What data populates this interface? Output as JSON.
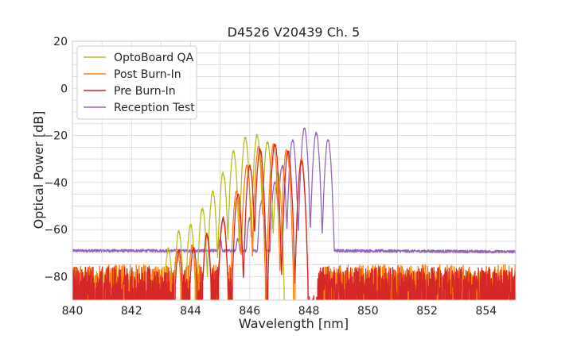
{
  "chart_data": {
    "type": "line",
    "title": "D4526 V20439 Ch. 5",
    "xlabel": "Wavelength [nm]",
    "ylabel": "Optical Power [dB]",
    "xlim": [
      840,
      855
    ],
    "ylim": [
      -90,
      20
    ],
    "xticks": [
      840,
      842,
      844,
      846,
      848,
      850,
      852,
      854
    ],
    "yticks": [
      20,
      0,
      -20,
      -40,
      -60,
      -80
    ],
    "xtick_labels": [
      "840",
      "842",
      "844",
      "846",
      "848",
      "850",
      "852",
      "854"
    ],
    "ytick_labels": [
      "20",
      "0",
      "−20",
      "−40",
      "−60",
      "−80"
    ],
    "grid": true,
    "legend_position": "upper-left",
    "series": [
      {
        "name": "OptoBoard QA",
        "color": "#bcbd22",
        "noise_floor": -85,
        "peaks": [
          {
            "x": 843.25,
            "y": -68
          },
          {
            "x": 843.6,
            "y": -61
          },
          {
            "x": 844.0,
            "y": -58
          },
          {
            "x": 844.4,
            "y": -51
          },
          {
            "x": 844.75,
            "y": -44
          },
          {
            "x": 845.1,
            "y": -36
          },
          {
            "x": 845.45,
            "y": -27
          },
          {
            "x": 845.85,
            "y": -21
          },
          {
            "x": 846.25,
            "y": -20
          },
          {
            "x": 846.6,
            "y": -23
          },
          {
            "x": 846.95,
            "y": -36
          }
        ]
      },
      {
        "name": "Post Burn-In",
        "color": "#ff7f0e",
        "noise_floor": -82,
        "peaks": [
          {
            "x": 843.55,
            "y": -69
          },
          {
            "x": 844.05,
            "y": -67
          },
          {
            "x": 844.55,
            "y": -63
          },
          {
            "x": 845.1,
            "y": -56
          },
          {
            "x": 845.55,
            "y": -44
          },
          {
            "x": 845.9,
            "y": -33
          },
          {
            "x": 846.3,
            "y": -25
          },
          {
            "x": 846.8,
            "y": -24
          },
          {
            "x": 847.25,
            "y": -26
          },
          {
            "x": 847.75,
            "y": -30
          }
        ]
      },
      {
        "name": "Pre Burn-In",
        "color": "#d62728",
        "noise_floor": -83,
        "peaks": [
          {
            "x": 843.6,
            "y": -69
          },
          {
            "x": 844.1,
            "y": -68
          },
          {
            "x": 844.55,
            "y": -62
          },
          {
            "x": 845.1,
            "y": -55
          },
          {
            "x": 845.6,
            "y": -45
          },
          {
            "x": 846.0,
            "y": -33
          },
          {
            "x": 846.35,
            "y": -26
          },
          {
            "x": 846.85,
            "y": -24
          },
          {
            "x": 847.3,
            "y": -27
          },
          {
            "x": 847.75,
            "y": -31
          }
        ]
      },
      {
        "name": "Reception Test",
        "color": "#9467bd",
        "noise_floor": -69,
        "peaks": [
          {
            "x": 845.0,
            "y": -64
          },
          {
            "x": 845.6,
            "y": -64
          },
          {
            "x": 846.0,
            "y": -55
          },
          {
            "x": 846.4,
            "y": -48
          },
          {
            "x": 846.85,
            "y": -40
          },
          {
            "x": 847.1,
            "y": -33
          },
          {
            "x": 847.45,
            "y": -22
          },
          {
            "x": 847.85,
            "y": -17
          },
          {
            "x": 848.25,
            "y": -19
          },
          {
            "x": 848.65,
            "y": -22
          }
        ]
      }
    ]
  }
}
